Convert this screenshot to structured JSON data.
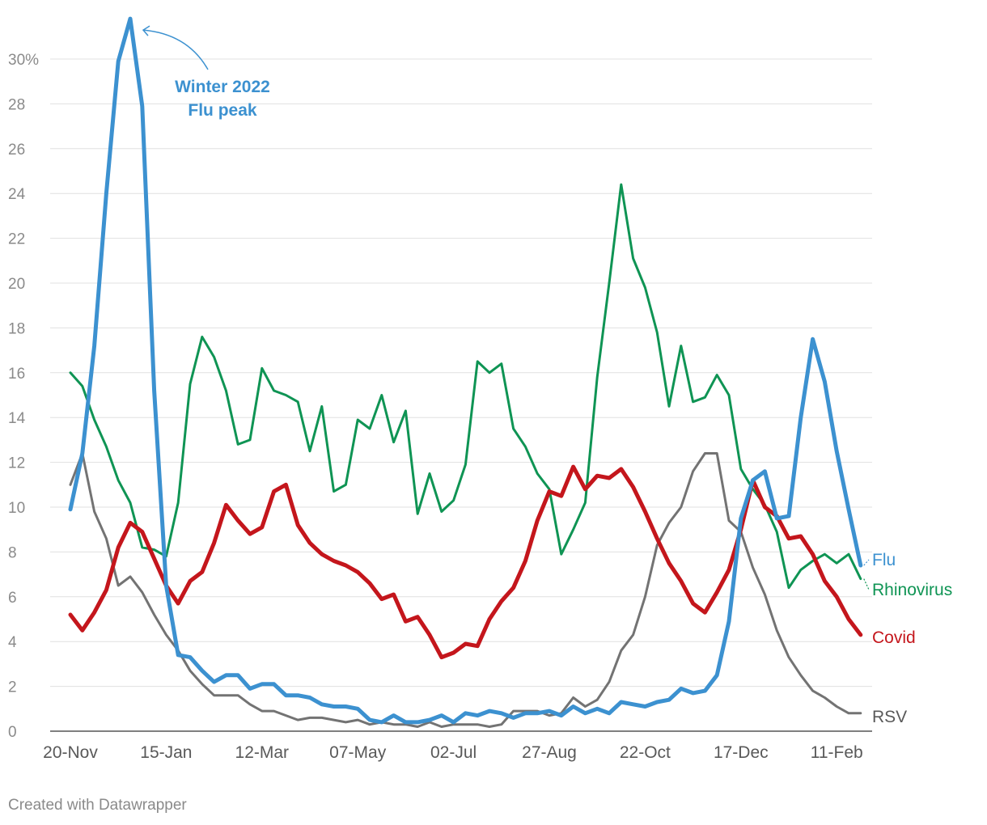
{
  "chart_data": {
    "type": "line",
    "title": "",
    "xlabel": "",
    "ylabel": "",
    "ylim": [
      0,
      30
    ],
    "y_ticks": [
      0,
      2,
      4,
      6,
      8,
      10,
      12,
      14,
      16,
      18,
      20,
      22,
      24,
      26,
      28,
      30
    ],
    "y_tick_labels": [
      "0",
      "2",
      "4",
      "6",
      "8",
      "10",
      "12",
      "14",
      "16",
      "18",
      "20",
      "22",
      "24",
      "26",
      "28",
      "30%"
    ],
    "x_ticks": [
      {
        "index": 0,
        "label": "20-Nov"
      },
      {
        "index": 8,
        "label": "15-Jan"
      },
      {
        "index": 16,
        "label": "12-Mar"
      },
      {
        "index": 24,
        "label": "07-May"
      },
      {
        "index": 32,
        "label": "02-Jul"
      },
      {
        "index": 40,
        "label": "27-Aug"
      },
      {
        "index": 48,
        "label": "22-Oct"
      },
      {
        "index": 56,
        "label": "17-Dec"
      },
      {
        "index": 64,
        "label": "11-Feb"
      }
    ],
    "grid": true,
    "series": [
      {
        "name": "Rhinovirus",
        "color": "#0f9454",
        "width": 3,
        "values": [
          16.0,
          15.4,
          13.9,
          12.7,
          11.2,
          10.2,
          8.2,
          8.1,
          7.8,
          10.2,
          15.5,
          17.6,
          16.7,
          15.2,
          12.8,
          13.0,
          16.2,
          15.2,
          15.0,
          14.7,
          12.5,
          14.5,
          10.7,
          11.0,
          13.9,
          13.5,
          15.0,
          12.9,
          14.3,
          9.7,
          11.5,
          9.8,
          10.3,
          11.9,
          16.5,
          16.0,
          16.4,
          13.5,
          12.7,
          11.5,
          10.8,
          7.9,
          9.0,
          10.2,
          15.8,
          20.0,
          24.4,
          21.1,
          19.8,
          17.8,
          14.5,
          17.2,
          14.7,
          14.9,
          15.9,
          15.0,
          11.7,
          10.8,
          10.1,
          8.9,
          6.4,
          7.2,
          7.6,
          7.9,
          7.5,
          7.9,
          6.8
        ]
      },
      {
        "name": "RSV",
        "color": "#737373",
        "width": 3,
        "values": [
          11.0,
          12.4,
          9.8,
          8.6,
          6.5,
          6.9,
          6.2,
          5.2,
          4.3,
          3.6,
          2.7,
          2.1,
          1.6,
          1.6,
          1.6,
          1.2,
          0.9,
          0.9,
          0.7,
          0.5,
          0.6,
          0.6,
          0.5,
          0.4,
          0.5,
          0.3,
          0.4,
          0.3,
          0.3,
          0.2,
          0.4,
          0.2,
          0.3,
          0.3,
          0.3,
          0.2,
          0.3,
          0.9,
          0.9,
          0.9,
          0.7,
          0.8,
          1.5,
          1.1,
          1.4,
          2.2,
          3.6,
          4.3,
          6.0,
          8.3,
          9.3,
          10.0,
          11.6,
          12.4,
          12.4,
          9.4,
          8.9,
          7.3,
          6.1,
          4.5,
          3.3,
          2.5,
          1.8,
          1.5,
          1.1,
          0.8,
          0.8
        ]
      },
      {
        "name": "Covid",
        "color": "#c4161c",
        "width": 5,
        "values": [
          5.2,
          4.5,
          5.3,
          6.3,
          8.2,
          9.3,
          8.9,
          7.7,
          6.5,
          5.7,
          6.7,
          7.1,
          8.4,
          10.1,
          9.4,
          8.8,
          9.1,
          10.7,
          11.0,
          9.2,
          8.4,
          7.9,
          7.6,
          7.4,
          7.1,
          6.6,
          5.9,
          6.1,
          4.9,
          5.1,
          4.3,
          3.3,
          3.5,
          3.9,
          3.8,
          5.0,
          5.8,
          6.4,
          7.6,
          9.4,
          10.7,
          10.5,
          11.8,
          10.8,
          11.4,
          11.3,
          11.7,
          10.9,
          9.8,
          8.6,
          7.5,
          6.7,
          5.7,
          5.3,
          6.2,
          7.2,
          9.0,
          11.2,
          10.0,
          9.6,
          8.6,
          8.7,
          7.9,
          6.7,
          6.0,
          5.0,
          4.3
        ]
      },
      {
        "name": "Flu",
        "color": "#3c91d0",
        "width": 5,
        "values": [
          9.9,
          12.4,
          17.2,
          24.0,
          29.9,
          31.8,
          27.9,
          15.2,
          6.5,
          3.4,
          3.3,
          2.7,
          2.2,
          2.5,
          2.5,
          1.9,
          2.1,
          2.1,
          1.6,
          1.6,
          1.5,
          1.2,
          1.1,
          1.1,
          1.0,
          0.5,
          0.4,
          0.7,
          0.4,
          0.4,
          0.5,
          0.7,
          0.4,
          0.8,
          0.7,
          0.9,
          0.8,
          0.6,
          0.8,
          0.8,
          0.9,
          0.7,
          1.1,
          0.8,
          1.0,
          0.8,
          1.3,
          1.2,
          1.1,
          1.3,
          1.4,
          1.9,
          1.7,
          1.8,
          2.5,
          4.9,
          9.5,
          11.2,
          11.6,
          9.5,
          9.6,
          14.0,
          17.5,
          15.6,
          12.5,
          9.9,
          7.4
        ]
      }
    ],
    "series_labels": [
      {
        "name": "Flu",
        "color": "#3c91d0"
      },
      {
        "name": "Rhinovirus",
        "color": "#0f9454"
      },
      {
        "name": "Covid",
        "color": "#c4161c"
      },
      {
        "name": "RSV",
        "color": "#595959"
      }
    ],
    "annotation": {
      "lines": [
        "Winter 2022",
        "Flu peak"
      ],
      "color": "#3c91d0",
      "target_series": "Flu",
      "target_index": 5
    }
  },
  "footer": {
    "credit": "Created with Datawrapper"
  }
}
